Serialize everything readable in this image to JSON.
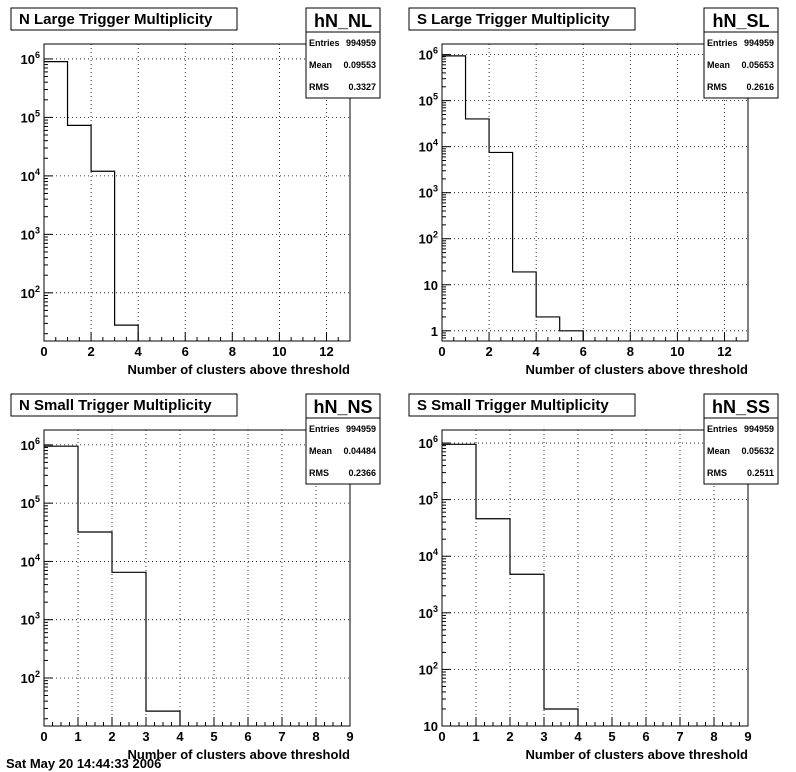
{
  "footer_text": "Sat May 20 14:44:33 2006",
  "chart_data": [
    {
      "type": "bar",
      "title": "N Large Trigger Multiplicity",
      "hist_name": "hN_NL",
      "stats": [
        {
          "label": "Entries",
          "value": "994959"
        },
        {
          "label": "Mean",
          "value": "0.09553"
        },
        {
          "label": "RMS",
          "value": "0.3327"
        }
      ],
      "xlabel": "Number of clusters above threshold",
      "xlim": [
        0,
        13
      ],
      "xticks": [
        0,
        2,
        4,
        6,
        8,
        10,
        12
      ],
      "ylog": true,
      "ylim": [
        15,
        1800000
      ],
      "yticks": [
        {
          "v": 100,
          "e": "2"
        },
        {
          "v": 1000,
          "e": "3"
        },
        {
          "v": 10000,
          "e": "4"
        },
        {
          "v": 100000,
          "e": "5"
        },
        {
          "v": 1000000,
          "e": "6"
        }
      ],
      "bins": [
        {
          "x0": 0,
          "x1": 1,
          "value": 900000
        },
        {
          "x0": 1,
          "x1": 2,
          "value": 73000
        },
        {
          "x0": 2,
          "x1": 3,
          "value": 12000
        },
        {
          "x0": 3,
          "x1": 4,
          "value": 28
        }
      ],
      "grid": true
    },
    {
      "type": "bar",
      "title": "S Large Trigger Multiplicity",
      "hist_name": "hN_SL",
      "stats": [
        {
          "label": "Entries",
          "value": "994959"
        },
        {
          "label": "Mean",
          "value": "0.05653"
        },
        {
          "label": "RMS",
          "value": "0.2616"
        }
      ],
      "xlabel": "Number of clusters above threshold",
      "xlim": [
        0,
        13
      ],
      "xticks": [
        0,
        2,
        4,
        6,
        8,
        10,
        12
      ],
      "ylog": true,
      "ylim": [
        0.6,
        1700000
      ],
      "yticks": [
        {
          "v": 1,
          "t": "1"
        },
        {
          "v": 10,
          "t": "10"
        },
        {
          "v": 100,
          "e": "2"
        },
        {
          "v": 1000,
          "e": "3"
        },
        {
          "v": 10000,
          "e": "4"
        },
        {
          "v": 100000,
          "e": "5"
        },
        {
          "v": 1000000,
          "e": "6"
        }
      ],
      "bins": [
        {
          "x0": 0,
          "x1": 1,
          "value": 940000
        },
        {
          "x0": 1,
          "x1": 2,
          "value": 40000
        },
        {
          "x0": 2,
          "x1": 3,
          "value": 7500
        },
        {
          "x0": 3,
          "x1": 4,
          "value": 19
        },
        {
          "x0": 4,
          "x1": 5,
          "value": 2
        },
        {
          "x0": 5,
          "x1": 6,
          "value": 1
        }
      ],
      "grid": true
    },
    {
      "type": "bar",
      "title": "N Small Trigger Multiplicity",
      "hist_name": "hN_NS",
      "stats": [
        {
          "label": "Entries",
          "value": "994959"
        },
        {
          "label": "Mean",
          "value": "0.04484"
        },
        {
          "label": "RMS",
          "value": "0.2366"
        }
      ],
      "xlabel": "Number of clusters above threshold",
      "xlim": [
        0,
        9
      ],
      "xticks": [
        0,
        1,
        2,
        3,
        4,
        5,
        6,
        7,
        8,
        9
      ],
      "ylog": true,
      "ylim": [
        15,
        1800000
      ],
      "yticks": [
        {
          "v": 100,
          "e": "2"
        },
        {
          "v": 1000,
          "e": "3"
        },
        {
          "v": 10000,
          "e": "4"
        },
        {
          "v": 100000,
          "e": "5"
        },
        {
          "v": 1000000,
          "e": "6"
        }
      ],
      "bins": [
        {
          "x0": 0,
          "x1": 1,
          "value": 950000
        },
        {
          "x0": 1,
          "x1": 2,
          "value": 32000
        },
        {
          "x0": 2,
          "x1": 3,
          "value": 6500
        },
        {
          "x0": 3,
          "x1": 4,
          "value": 27
        }
      ],
      "grid": true
    },
    {
      "type": "bar",
      "title": "S Small Trigger Multiplicity",
      "hist_name": "hN_SS",
      "stats": [
        {
          "label": "Entries",
          "value": "994959"
        },
        {
          "label": "Mean",
          "value": "0.05632"
        },
        {
          "label": "RMS",
          "value": "0.2511"
        }
      ],
      "xlabel": "Number of clusters above threshold",
      "xlim": [
        0,
        9
      ],
      "xticks": [
        0,
        1,
        2,
        3,
        4,
        5,
        6,
        7,
        8,
        9
      ],
      "ylog": true,
      "ylim": [
        10,
        1700000
      ],
      "yticks": [
        {
          "v": 10,
          "t": "10"
        },
        {
          "v": 100,
          "e": "2"
        },
        {
          "v": 1000,
          "e": "3"
        },
        {
          "v": 10000,
          "e": "4"
        },
        {
          "v": 100000,
          "e": "5"
        },
        {
          "v": 1000000,
          "e": "6"
        }
      ],
      "bins": [
        {
          "x0": 0,
          "x1": 1,
          "value": 950000
        },
        {
          "x0": 1,
          "x1": 2,
          "value": 46000
        },
        {
          "x0": 2,
          "x1": 3,
          "value": 4800
        },
        {
          "x0": 3,
          "x1": 4,
          "value": 20
        }
      ],
      "grid": true
    }
  ]
}
